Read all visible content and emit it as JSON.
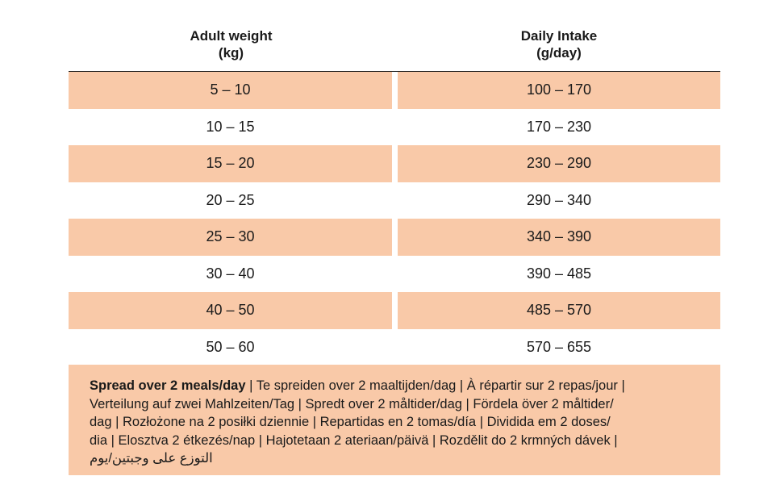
{
  "table": {
    "headers": {
      "left_line1": "Adult weight",
      "left_line2": "(kg)",
      "right_line1": "Daily Intake",
      "right_line2": "(g/day)"
    },
    "rows": [
      {
        "weight": "5 – 10",
        "intake": "100 – 170"
      },
      {
        "weight": "10 – 15",
        "intake": "170 – 230"
      },
      {
        "weight": "15 – 20",
        "intake": "230 – 290"
      },
      {
        "weight": "20 – 25",
        "intake": "290 – 340"
      },
      {
        "weight": "25 – 30",
        "intake": "340 – 390"
      },
      {
        "weight": "30 – 40",
        "intake": "390 – 485"
      },
      {
        "weight": "40 – 50",
        "intake": "485 – 570"
      },
      {
        "weight": "50 – 60",
        "intake": "570 – 655"
      }
    ]
  },
  "note": {
    "bold": "Spread over 2 meals/day",
    "line1_rest": " | Te spreiden over 2 maaltijden/dag | À répartir sur 2 repas/jour |",
    "line2": "Verteilung auf zwei Mahlzeiten/Tag | Spredt over 2 måltider/dag | Fördela över 2 måltider/",
    "line3": "dag | Rozłożone na 2 posiłki dziennie | Repartidas en 2 tomas/día | Dividida em 2 doses/",
    "line4": "dia | Elosztva 2 étkezés/nap | Hajotetaan 2 ateriaan/päivä | Rozdělit do 2 krmných dávek |",
    "line5": "التوزع على وجبتين/يوم"
  },
  "colors": {
    "shade": "#f9c9a8",
    "text": "#1a1a1a",
    "background": "#ffffff"
  }
}
